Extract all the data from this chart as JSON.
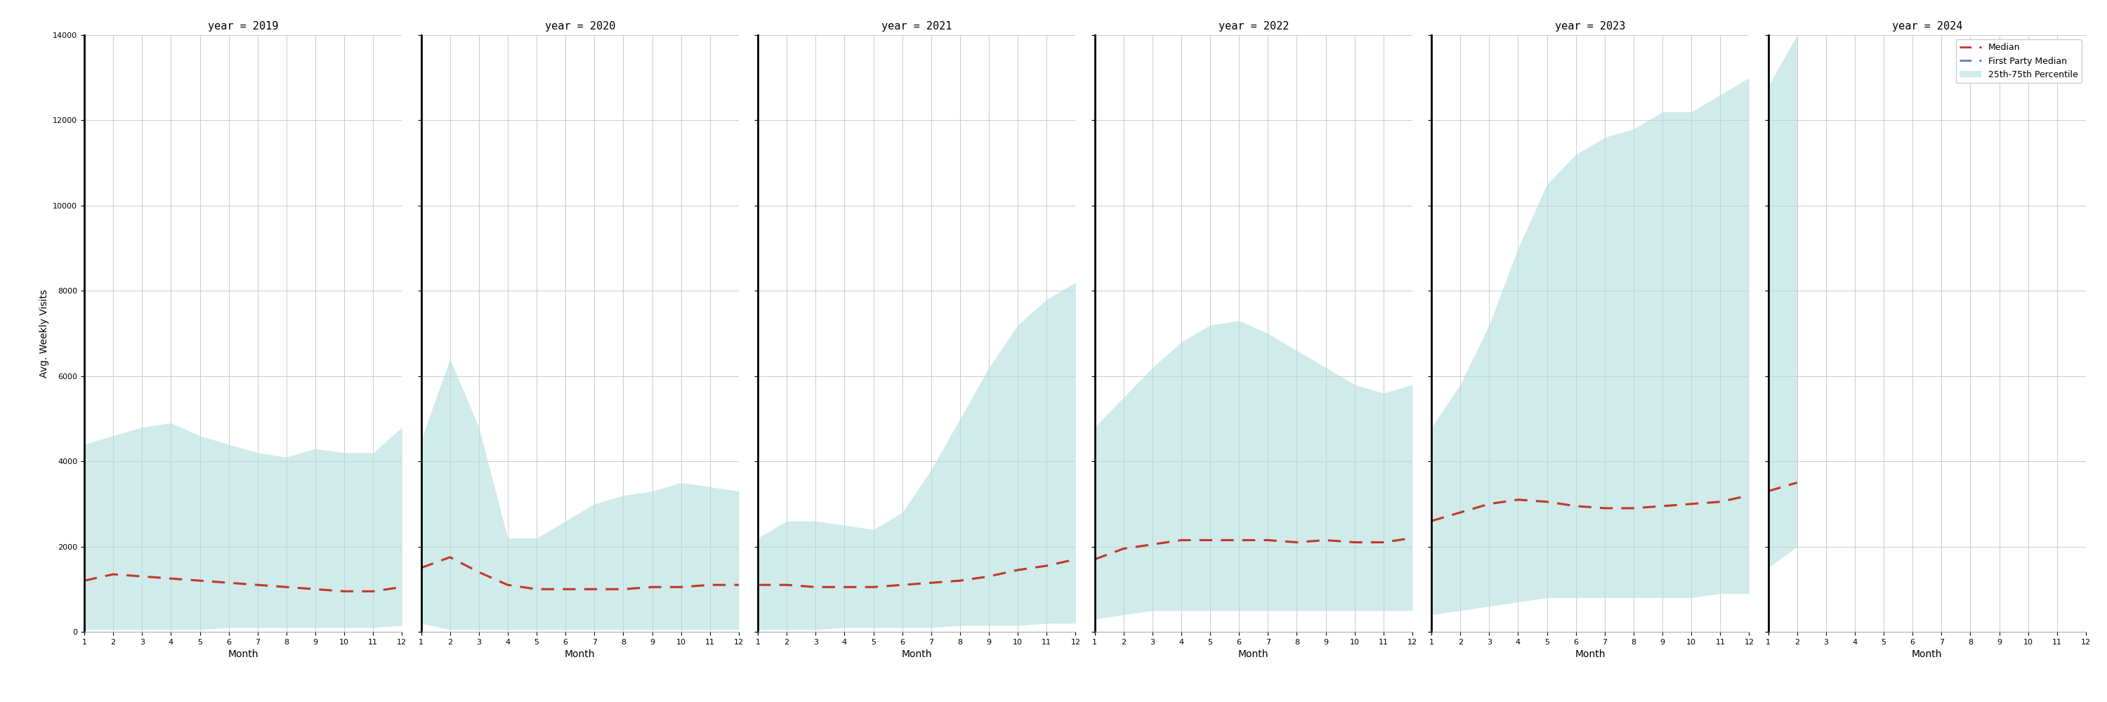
{
  "years": [
    2019,
    2020,
    2021,
    2022,
    2023,
    2024
  ],
  "ylim": [
    0,
    14000
  ],
  "yticks": [
    0,
    2000,
    4000,
    6000,
    8000,
    10000,
    12000,
    14000
  ],
  "ylabel": "Avg. Weekly Visits",
  "xlabel": "Month",
  "band_color": "#b2dfdb",
  "band_alpha": 0.6,
  "median_color": "#c0392b",
  "fp_median_color": "#5b7fc1",
  "median_linewidth": 2.2,
  "fp_linewidth": 2.2,
  "legend_labels": [
    "Median",
    "First Party Median",
    "25th-75th Percentile"
  ],
  "data": {
    "2019": {
      "months": [
        1,
        2,
        3,
        4,
        5,
        6,
        7,
        8,
        9,
        10,
        11,
        12
      ],
      "median": [
        1200,
        1350,
        1300,
        1250,
        1200,
        1150,
        1100,
        1050,
        1000,
        950,
        950,
        1050
      ],
      "p25": [
        50,
        50,
        50,
        50,
        50,
        100,
        100,
        100,
        100,
        100,
        100,
        150
      ],
      "p75": [
        4400,
        4600,
        4800,
        4900,
        4600,
        4400,
        4200,
        4100,
        4300,
        4200,
        4200,
        4800
      ]
    },
    "2020": {
      "months": [
        1,
        2,
        3,
        4,
        5,
        6,
        7,
        8,
        9,
        10,
        11,
        12
      ],
      "median": [
        1500,
        1750,
        1400,
        1100,
        1000,
        1000,
        1000,
        1000,
        1050,
        1050,
        1100,
        1100
      ],
      "p25": [
        200,
        50,
        50,
        50,
        50,
        50,
        50,
        50,
        50,
        50,
        50,
        50
      ],
      "p75": [
        4500,
        6400,
        4800,
        2200,
        2200,
        2600,
        3000,
        3200,
        3300,
        3500,
        3400,
        3300
      ]
    },
    "2021": {
      "months": [
        1,
        2,
        3,
        4,
        5,
        6,
        7,
        8,
        9,
        10,
        11,
        12
      ],
      "median": [
        1100,
        1100,
        1050,
        1050,
        1050,
        1100,
        1150,
        1200,
        1300,
        1450,
        1550,
        1700
      ],
      "p25": [
        50,
        50,
        50,
        100,
        100,
        100,
        100,
        150,
        150,
        150,
        200,
        200
      ],
      "p75": [
        2200,
        2600,
        2600,
        2500,
        2400,
        2800,
        3800,
        5000,
        6200,
        7200,
        7800,
        8200
      ]
    },
    "2022": {
      "months": [
        1,
        2,
        3,
        4,
        5,
        6,
        7,
        8,
        9,
        10,
        11,
        12
      ],
      "median": [
        1700,
        1950,
        2050,
        2150,
        2150,
        2150,
        2150,
        2100,
        2150,
        2100,
        2100,
        2200
      ],
      "p25": [
        300,
        400,
        500,
        500,
        500,
        500,
        500,
        500,
        500,
        500,
        500,
        500
      ],
      "p75": [
        4800,
        5500,
        6200,
        6800,
        7200,
        7300,
        7000,
        6600,
        6200,
        5800,
        5600,
        5800
      ]
    },
    "2023": {
      "months": [
        1,
        2,
        3,
        4,
        5,
        6,
        7,
        8,
        9,
        10,
        11,
        12
      ],
      "median": [
        2600,
        2800,
        3000,
        3100,
        3050,
        2950,
        2900,
        2900,
        2950,
        3000,
        3050,
        3200
      ],
      "p25": [
        400,
        500,
        600,
        700,
        800,
        800,
        800,
        800,
        800,
        800,
        900,
        900
      ],
      "p75": [
        4800,
        5800,
        7200,
        9000,
        10500,
        11200,
        11600,
        11800,
        12200,
        12200,
        12600,
        13000
      ]
    },
    "2024": {
      "months": [
        1,
        2
      ],
      "median": [
        3300,
        3500
      ],
      "p25": [
        1500,
        2000
      ],
      "p75": [
        12800,
        14000
      ]
    }
  }
}
